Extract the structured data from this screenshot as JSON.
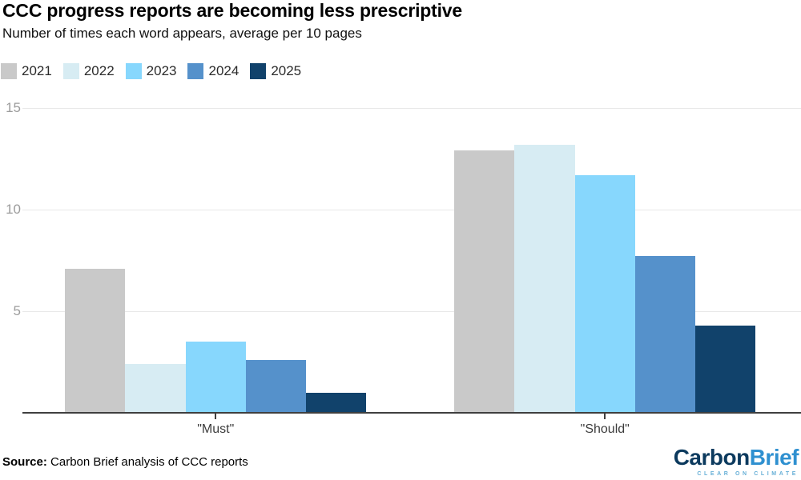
{
  "header": {
    "title": "CCC progress reports are becoming less prescriptive",
    "subtitle": "Number of times each word appears, average per 10 pages"
  },
  "chart_data": {
    "type": "bar",
    "categories": [
      "\"Must\"",
      "\"Should\""
    ],
    "series": [
      {
        "name": "2021",
        "color": "#c9c9c9",
        "values": [
          7.1,
          12.9
        ]
      },
      {
        "name": "2022",
        "color": "#d7ecf3",
        "values": [
          2.4,
          13.2
        ]
      },
      {
        "name": "2023",
        "color": "#87d7fd",
        "values": [
          3.5,
          11.7
        ]
      },
      {
        "name": "2024",
        "color": "#5591cb",
        "values": [
          2.6,
          7.7
        ]
      },
      {
        "name": "2025",
        "color": "#11426b",
        "values": [
          1.0,
          4.3
        ]
      }
    ],
    "ylim": [
      0,
      15
    ],
    "yticks": [
      5,
      10,
      15
    ],
    "grid": true,
    "legend_position": "top-left",
    "xlabel": "",
    "ylabel": ""
  },
  "footer": {
    "source_label": "Source:",
    "source_text": " Carbon Brief analysis of CCC reports",
    "logo": {
      "part1": "Carbon",
      "part2": "Brief",
      "tagline": "CLEAR ON CLIMATE"
    }
  }
}
